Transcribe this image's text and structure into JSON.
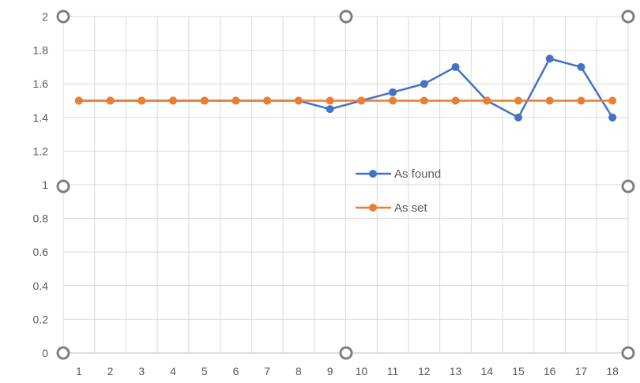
{
  "chart_data": {
    "type": "line",
    "title": "",
    "xlabel": "",
    "ylabel": "",
    "categories": [
      "1",
      "2",
      "3",
      "4",
      "5",
      "6",
      "7",
      "8",
      "9",
      "10",
      "11",
      "12",
      "13",
      "14",
      "15",
      "16",
      "17",
      "18"
    ],
    "ylim": [
      0,
      2
    ],
    "yticks": [
      "0",
      "0.2",
      "0.4",
      "0.6",
      "0.8",
      "1",
      "1.2",
      "1.4",
      "1.6",
      "1.8",
      "2"
    ],
    "grid": true,
    "legend_position": "center-right",
    "series": [
      {
        "name": "As found",
        "color": "#4472C4",
        "values": [
          1.5,
          1.5,
          1.5,
          1.5,
          1.5,
          1.5,
          1.5,
          1.5,
          1.45,
          1.5,
          1.55,
          1.6,
          1.7,
          1.5,
          1.4,
          1.75,
          1.7,
          1.4
        ]
      },
      {
        "name": "As set",
        "color": "#ED7D31",
        "values": [
          1.5,
          1.5,
          1.5,
          1.5,
          1.5,
          1.5,
          1.5,
          1.5,
          1.5,
          1.5,
          1.5,
          1.5,
          1.5,
          1.5,
          1.5,
          1.5,
          1.5,
          1.5
        ]
      }
    ]
  }
}
